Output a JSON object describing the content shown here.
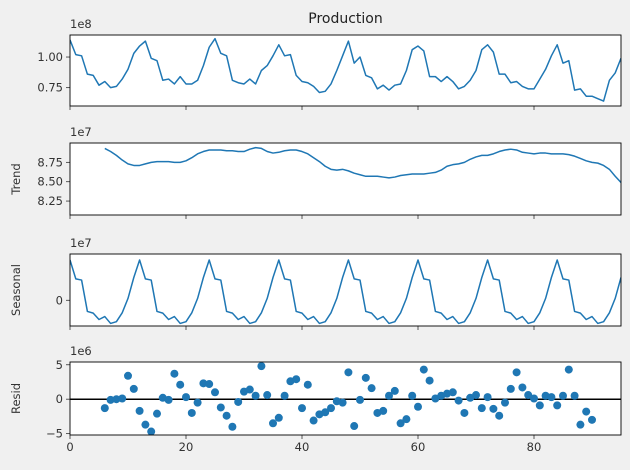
{
  "chart_data": [
    {
      "type": "line",
      "title": "Production",
      "ylabel": "",
      "exponent_label": "1e8",
      "scale": 100000000,
      "xlim": [
        0,
        95
      ],
      "ylim": [
        0.6,
        1.18
      ],
      "yticks": [
        0.75,
        1.0
      ],
      "ytick_labels": [
        "0.75",
        "1.00"
      ],
      "xticks": [
        0,
        20,
        40,
        60,
        80
      ],
      "show_xtick_labels": false,
      "color": "#1f77b4",
      "x_start": 0,
      "values": [
        1.14,
        1.02,
        1.01,
        0.86,
        0.85,
        0.77,
        0.8,
        0.75,
        0.76,
        0.82,
        0.9,
        1.03,
        1.09,
        1.13,
        0.99,
        0.97,
        0.81,
        0.82,
        0.78,
        0.84,
        0.78,
        0.78,
        0.81,
        0.93,
        1.08,
        1.15,
        1.03,
        1.01,
        0.81,
        0.79,
        0.78,
        0.82,
        0.78,
        0.89,
        0.93,
        1.01,
        1.1,
        1.01,
        1.02,
        0.85,
        0.8,
        0.79,
        0.76,
        0.71,
        0.72,
        0.78,
        0.89,
        1.01,
        1.13,
        0.95,
        1.0,
        0.85,
        0.83,
        0.74,
        0.77,
        0.73,
        0.77,
        0.78,
        0.89,
        1.06,
        1.09,
        1.05,
        0.84,
        0.84,
        0.8,
        0.84,
        0.8,
        0.74,
        0.76,
        0.81,
        0.89,
        1.06,
        1.1,
        1.04,
        0.86,
        0.86,
        0.79,
        0.8,
        0.76,
        0.74,
        0.74,
        0.82,
        0.9,
        1.01,
        1.1,
        0.95,
        0.97,
        0.73,
        0.74,
        0.68,
        0.68,
        0.66,
        0.64,
        0.81,
        0.87,
        0.99
      ]
    },
    {
      "type": "line",
      "title": "",
      "ylabel": "Trend",
      "exponent_label": "1e7",
      "scale": 10000000,
      "xlim": [
        0,
        95
      ],
      "ylim": [
        8.07,
        9.0
      ],
      "yticks": [
        8.25,
        8.5,
        8.75
      ],
      "ytick_labels": [
        "8.25",
        "8.50",
        "8.75"
      ],
      "xticks": [
        0,
        20,
        40,
        60,
        80
      ],
      "show_xtick_labels": false,
      "color": "#1f77b4",
      "x_start": 6,
      "values": [
        8.93,
        8.89,
        8.84,
        8.78,
        8.73,
        8.71,
        8.71,
        8.73,
        8.75,
        8.76,
        8.76,
        8.76,
        8.75,
        8.75,
        8.77,
        8.81,
        8.86,
        8.89,
        8.91,
        8.91,
        8.91,
        8.9,
        8.9,
        8.89,
        8.89,
        8.92,
        8.94,
        8.93,
        8.89,
        8.87,
        8.88,
        8.9,
        8.91,
        8.91,
        8.89,
        8.86,
        8.81,
        8.76,
        8.7,
        8.66,
        8.65,
        8.66,
        8.64,
        8.61,
        8.59,
        8.57,
        8.57,
        8.57,
        8.56,
        8.55,
        8.56,
        8.58,
        8.59,
        8.6,
        8.6,
        8.6,
        8.61,
        8.62,
        8.65,
        8.7,
        8.72,
        8.73,
        8.75,
        8.79,
        8.82,
        8.84,
        8.84,
        8.86,
        8.89,
        8.91,
        8.92,
        8.91,
        8.88,
        8.87,
        8.86,
        8.87,
        8.87,
        8.86,
        8.86,
        8.86,
        8.85,
        8.83,
        8.8,
        8.77,
        8.75,
        8.74,
        8.71,
        8.66,
        8.57,
        8.49,
        8.41,
        8.33,
        8.26,
        8.19,
        8.15,
        8.14,
        8.14
      ]
    },
    {
      "type": "line",
      "title": "",
      "ylabel": "Seasonal",
      "exponent_label": "1e7",
      "scale": 10000000,
      "xlim": [
        0,
        95
      ],
      "ylim": [
        -1.5,
        2.7
      ],
      "yticks": [
        0
      ],
      "ytick_labels": [
        "0"
      ],
      "xticks": [
        0,
        20,
        40,
        60,
        80
      ],
      "show_xtick_labels": false,
      "color": "#1f77b4",
      "x_start": 0,
      "values": [
        2.35,
        1.25,
        1.18,
        -0.65,
        -0.75,
        -1.12,
        -0.95,
        -1.35,
        -1.25,
        -0.73,
        0.11,
        1.33,
        2.35,
        1.25,
        1.18,
        -0.65,
        -0.75,
        -1.12,
        -0.95,
        -1.35,
        -1.25,
        -0.73,
        0.11,
        1.33,
        2.35,
        1.25,
        1.18,
        -0.65,
        -0.75,
        -1.12,
        -0.95,
        -1.35,
        -1.25,
        -0.73,
        0.11,
        1.33,
        2.35,
        1.25,
        1.18,
        -0.65,
        -0.75,
        -1.12,
        -0.95,
        -1.35,
        -1.25,
        -0.73,
        0.11,
        1.33,
        2.35,
        1.25,
        1.18,
        -0.65,
        -0.75,
        -1.12,
        -0.95,
        -1.35,
        -1.25,
        -0.73,
        0.11,
        1.33,
        2.35,
        1.25,
        1.18,
        -0.65,
        -0.75,
        -1.12,
        -0.95,
        -1.35,
        -1.25,
        -0.73,
        0.11,
        1.33,
        2.35,
        1.25,
        1.18,
        -0.65,
        -0.75,
        -1.12,
        -0.95,
        -1.35,
        -1.25,
        -0.73,
        0.11,
        1.33,
        2.35,
        1.25,
        1.18,
        -0.65,
        -0.75,
        -1.12,
        -0.95,
        -1.35,
        -1.25,
        -0.73,
        0.11,
        1.33
      ]
    },
    {
      "type": "scatter",
      "title": "",
      "ylabel": "Resid",
      "exponent_label": "1e6",
      "scale": 1000000,
      "xlim": [
        0,
        95
      ],
      "ylim": [
        -5.2,
        5.4
      ],
      "yticks": [
        -5,
        0,
        5
      ],
      "ytick_labels": [
        "−5",
        "0",
        "5"
      ],
      "xticks": [
        0,
        20,
        40,
        60,
        80
      ],
      "xtick_labels": [
        "0",
        "20",
        "40",
        "60",
        "80"
      ],
      "show_xtick_labels": true,
      "baseline": 0,
      "color": "#1f77b4",
      "x_start": 6,
      "values": [
        -1.3,
        -0.1,
        0.0,
        0.1,
        3.4,
        1.5,
        -1.7,
        -3.7,
        -4.7,
        -2.1,
        0.2,
        -0.1,
        3.7,
        2.1,
        0.3,
        -2.0,
        -0.5,
        2.3,
        2.2,
        1.0,
        -1.2,
        -2.4,
        -4.0,
        -0.4,
        1.1,
        1.4,
        0.5,
        4.8,
        0.6,
        -3.5,
        -2.7,
        0.5,
        2.6,
        2.9,
        -1.3,
        2.1,
        -3.1,
        -2.2,
        -1.9,
        -1.3,
        -0.3,
        -0.5,
        3.9,
        -3.9,
        -0.1,
        3.1,
        1.6,
        -2.0,
        -1.7,
        0.5,
        1.2,
        -3.5,
        -2.9,
        0.5,
        -1.1,
        4.3,
        2.7,
        0.1,
        0.5,
        0.8,
        1.0,
        -0.2,
        -2.0,
        0.2,
        0.6,
        -1.3,
        0.3,
        -1.4,
        -2.4,
        -0.5,
        1.5,
        3.9,
        1.7,
        0.6,
        0.1,
        -0.9,
        0.5,
        0.3,
        -0.9,
        0.5,
        4.3,
        0.5,
        -3.7,
        -1.8,
        -3.0
      ]
    }
  ]
}
